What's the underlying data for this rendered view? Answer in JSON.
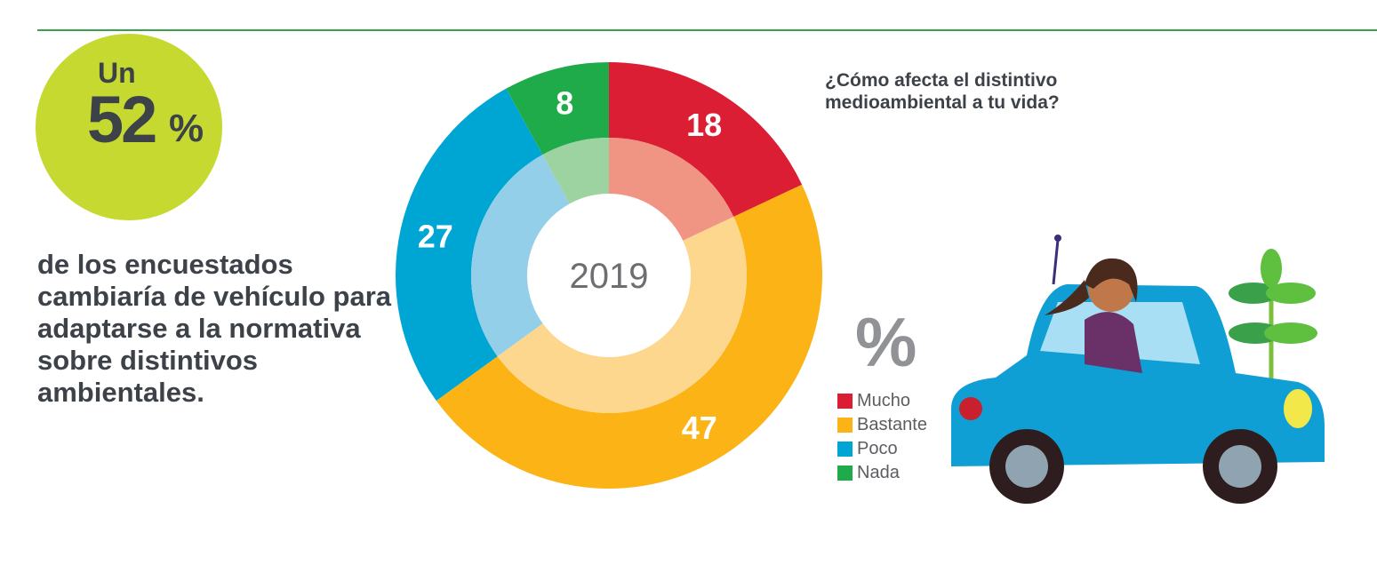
{
  "headline": {
    "prefix": "Un",
    "number": "52",
    "unit": "%",
    "description": "de los encuestados cambiaría de vehículo para adaptarse a la normativa sobre distintivos ambientales."
  },
  "chart_data": {
    "type": "pie",
    "donut": true,
    "title": "¿Cómo afecta el distintivo medioambiental a tu vida?",
    "center_label": "2019",
    "unit_label": "%",
    "categories": [
      "Mucho",
      "Bastante",
      "Poco",
      "Nada"
    ],
    "values": [
      18,
      47,
      27,
      8
    ],
    "colors": [
      "#dc1e35",
      "#fbb316",
      "#00a6d3",
      "#20ab4a"
    ],
    "inner_colors": [
      "#f09583",
      "#fdd78e",
      "#93cfe9",
      "#9dd3a0"
    ],
    "legend_position": "right"
  }
}
